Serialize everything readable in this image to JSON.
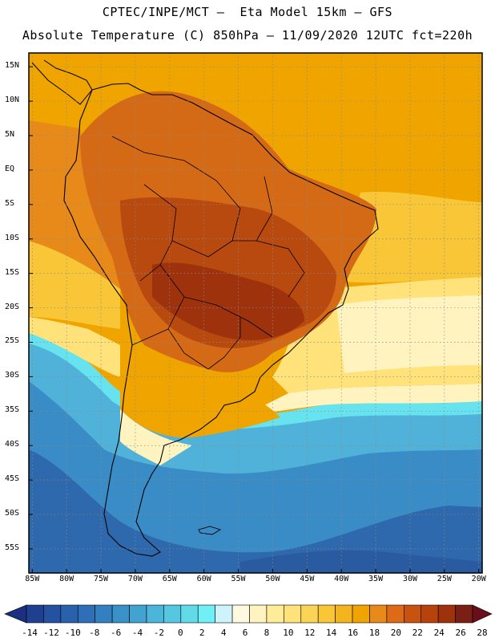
{
  "title": {
    "line1": "CPTEC/INPE/MCT –  Eta Model 15km – GFS",
    "line2": "Absolute Temperature (C) 850hPa – 11/09/2020 12UTC fct=220h"
  },
  "map": {
    "extent": {
      "lon_min": -85.5,
      "lon_max": -19.5,
      "lat_min": -58.5,
      "lat_max": 17
    },
    "lat_ticks": [
      {
        "lat": 15,
        "label": "15N"
      },
      {
        "lat": 10,
        "label": "10N"
      },
      {
        "lat": 5,
        "label": "5N"
      },
      {
        "lat": 0,
        "label": "EQ"
      },
      {
        "lat": -5,
        "label": "5S"
      },
      {
        "lat": -10,
        "label": "10S"
      },
      {
        "lat": -15,
        "label": "15S"
      },
      {
        "lat": -20,
        "label": "20S"
      },
      {
        "lat": -25,
        "label": "25S"
      },
      {
        "lat": -30,
        "label": "30S"
      },
      {
        "lat": -35,
        "label": "35S"
      },
      {
        "lat": -40,
        "label": "40S"
      },
      {
        "lat": -45,
        "label": "45S"
      },
      {
        "lat": -50,
        "label": "50S"
      },
      {
        "lat": -55,
        "label": "55S"
      }
    ],
    "lon_ticks": [
      {
        "lon": -85,
        "label": "85W"
      },
      {
        "lon": -80,
        "label": "80W"
      },
      {
        "lon": -75,
        "label": "75W"
      },
      {
        "lon": -70,
        "label": "70W"
      },
      {
        "lon": -65,
        "label": "65W"
      },
      {
        "lon": -60,
        "label": "60W"
      },
      {
        "lon": -55,
        "label": "55W"
      },
      {
        "lon": -50,
        "label": "50W"
      },
      {
        "lon": -45,
        "label": "45W"
      },
      {
        "lon": -40,
        "label": "40W"
      },
      {
        "lon": -35,
        "label": "35W"
      },
      {
        "lon": -30,
        "label": "30W"
      },
      {
        "lon": -25,
        "label": "25W"
      },
      {
        "lon": -20,
        "label": "20W"
      }
    ],
    "colors": {
      "band_0": "#63c3dd",
      "band_6": "#fff4bf",
      "band_10": "#ffe37a",
      "band_14": "#f9c637",
      "band_18": "#f0a400",
      "band_20": "#e78a1a",
      "band_22": "#d56a16",
      "band_24": "#b84a10",
      "band_26": "#9d320c",
      "cold_deep": "#2f69ad",
      "cold_mid": "#3a8cc6",
      "cold_light": "#50b2d8",
      "cyan": "#66e3ef"
    }
  },
  "colorbar": {
    "labels": [
      "-14",
      "-12",
      "-10",
      "-8",
      "-6",
      "-4",
      "-2",
      "0",
      "2",
      "4",
      "6",
      "8",
      "10",
      "12",
      "14",
      "16",
      "18",
      "20",
      "22",
      "24",
      "26",
      "28"
    ],
    "colors": [
      "#1f3f8f",
      "#2452a0",
      "#2a61ac",
      "#2f6fb5",
      "#3480bf",
      "#3a91c8",
      "#42a3d1",
      "#4bb5da",
      "#55c7e2",
      "#62dbe9",
      "#70f0f5",
      "#cff3fa",
      "#fff9e2",
      "#fff4bf",
      "#ffec99",
      "#ffe37a",
      "#fad457",
      "#f9c637",
      "#f4b41c",
      "#f0a400",
      "#e78a1a",
      "#dc6a16",
      "#c8520f",
      "#b8420c",
      "#9d320c",
      "#7a1f15"
    ],
    "left_arrow": "#1c2f80",
    "right_arrow": "#6a0f1a"
  }
}
